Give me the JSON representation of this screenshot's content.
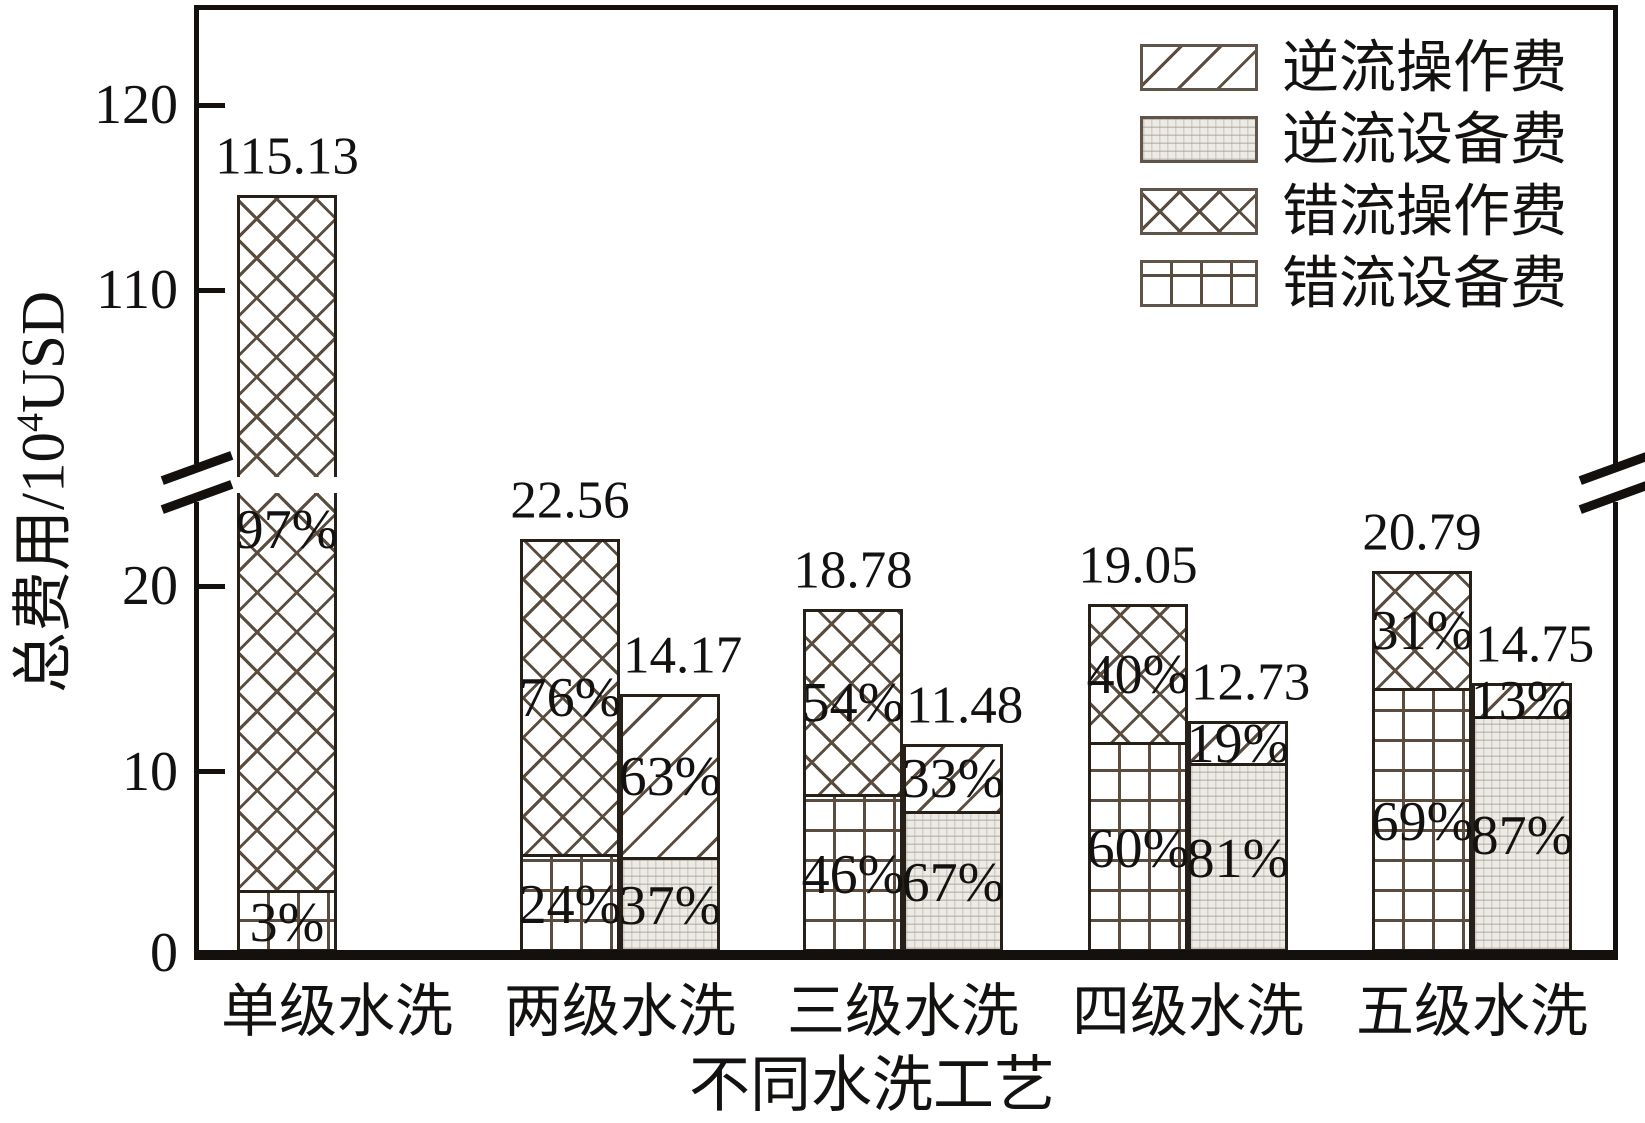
{
  "legend": {
    "items": [
      {
        "label": "逆流操作费",
        "pattern": "diagonal"
      },
      {
        "label": "逆流设备费",
        "pattern": "dotted"
      },
      {
        "label": "错流操作费",
        "pattern": "crosshatch"
      },
      {
        "label": "错流设备费",
        "pattern": "grid"
      }
    ]
  },
  "chart_data": {
    "type": "bar",
    "subtype": "grouped-stacked-percent-broken-y-axis",
    "title": "",
    "xlabel": "不同水洗工艺",
    "ylabel": "总费用/10⁴USD",
    "ylabel_parts": {
      "prefix": "总费用/10",
      "sup": "4",
      "suffix": "USD"
    },
    "categories": [
      "单级水洗",
      "两级水洗",
      "三级水洗",
      "四级水洗",
      "五级水洗"
    ],
    "y_axis": {
      "lower_range": [
        0,
        25
      ],
      "upper_range": [
        100,
        125
      ],
      "break_between": [
        25,
        100
      ],
      "ticks": [
        {
          "label": "0",
          "value": 0,
          "segment": "lower"
        },
        {
          "label": "10",
          "value": 10,
          "segment": "lower"
        },
        {
          "label": "20",
          "value": 20,
          "segment": "lower"
        },
        {
          "label": "110",
          "value": 110,
          "segment": "upper"
        },
        {
          "label": "120",
          "value": 120,
          "segment": "upper"
        }
      ]
    },
    "patterns": {
      "crossflow_operating": "crosshatch",
      "crossflow_equipment": "grid",
      "countercurrent_operating": "diagonal",
      "countercurrent_equipment": "dotted"
    },
    "groups": [
      {
        "category": "单级水洗",
        "bars": [
          {
            "flow": "crossflow",
            "total": 115.13,
            "total_label": "115.13",
            "operating_pct": "97%",
            "equipment_pct": "3%"
          }
        ]
      },
      {
        "category": "两级水洗",
        "bars": [
          {
            "flow": "crossflow",
            "total": 22.56,
            "total_label": "22.56",
            "operating_pct": "76%",
            "equipment_pct": "24%"
          },
          {
            "flow": "countercurrent",
            "total": 14.17,
            "total_label": "14.17",
            "operating_pct": "63%",
            "equipment_pct": "37%"
          }
        ]
      },
      {
        "category": "三级水洗",
        "bars": [
          {
            "flow": "crossflow",
            "total": 18.78,
            "total_label": "18.78",
            "operating_pct": "54%",
            "equipment_pct": "46%"
          },
          {
            "flow": "countercurrent",
            "total": 11.48,
            "total_label": "11.48",
            "operating_pct": "33%",
            "equipment_pct": "67%"
          }
        ]
      },
      {
        "category": "四级水洗",
        "bars": [
          {
            "flow": "crossflow",
            "total": 19.05,
            "total_label": "19.05",
            "operating_pct": "40%",
            "equipment_pct": "60%"
          },
          {
            "flow": "countercurrent",
            "total": 12.73,
            "total_label": "12.73",
            "operating_pct": "19%",
            "equipment_pct": "81%"
          }
        ]
      },
      {
        "category": "五级水洗",
        "bars": [
          {
            "flow": "crossflow",
            "total": 20.79,
            "total_label": "20.79",
            "operating_pct": "31%",
            "equipment_pct": "69%"
          },
          {
            "flow": "countercurrent",
            "total": 14.75,
            "total_label": "14.75",
            "operating_pct": "13%",
            "equipment_pct": "87%"
          }
        ]
      }
    ]
  }
}
